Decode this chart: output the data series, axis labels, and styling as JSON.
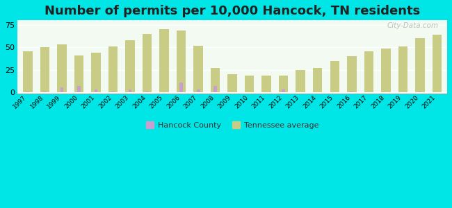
{
  "title": "Number of permits per 10,000 Hancock, TN residents",
  "years": [
    1997,
    1998,
    1999,
    2000,
    2001,
    2002,
    2003,
    2004,
    2005,
    2006,
    2007,
    2008,
    2009,
    2010,
    2011,
    2012,
    2013,
    2014,
    2015,
    2016,
    2017,
    2018,
    2019,
    2020,
    2021
  ],
  "hancock": [
    1,
    1,
    6,
    7,
    3,
    1,
    3,
    1,
    0,
    11,
    3,
    7,
    0,
    0,
    0,
    3,
    0,
    0,
    0,
    1,
    0,
    0,
    0,
    1,
    0
  ],
  "tennessee": [
    46,
    50,
    53,
    41,
    44,
    51,
    58,
    65,
    70,
    69,
    52,
    27,
    20,
    19,
    19,
    19,
    25,
    27,
    35,
    40,
    46,
    49,
    51,
    60,
    64
  ],
  "hancock_color": "#c8a0d0",
  "tennessee_color": "#c8cc84",
  "yticks": [
    0,
    25,
    50,
    75
  ],
  "ylim": [
    -1,
    80
  ],
  "legend_hancock": "Hancock County",
  "legend_tennessee": "Tennessee average",
  "outer_bg": "#00e5e5",
  "title_fontsize": 13,
  "title_color": "#222222",
  "watermark": "City-Data.com",
  "tn_bar_width": 0.55,
  "hc_bar_width": 0.2,
  "xlim_left": -0.6,
  "xlim_right": 24.6
}
